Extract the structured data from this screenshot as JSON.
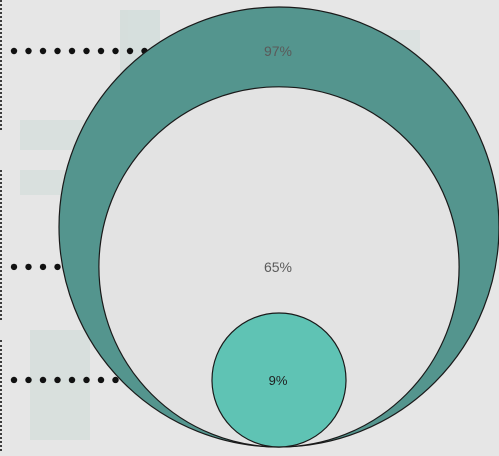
{
  "chart_data": {
    "type": "nested-circle",
    "items": [
      {
        "label": "97%",
        "value": 97,
        "color": "#54958e"
      },
      {
        "label": "65%",
        "value": 65,
        "color": "#e3e3e3"
      },
      {
        "label": "9%",
        "value": 9,
        "color": "#5fc3b4"
      }
    ]
  },
  "colors": {
    "background": "#e6e6e6",
    "outline": "#1a1a1a",
    "leader_dots": "#111111",
    "watermark": "#c9d9d5"
  }
}
